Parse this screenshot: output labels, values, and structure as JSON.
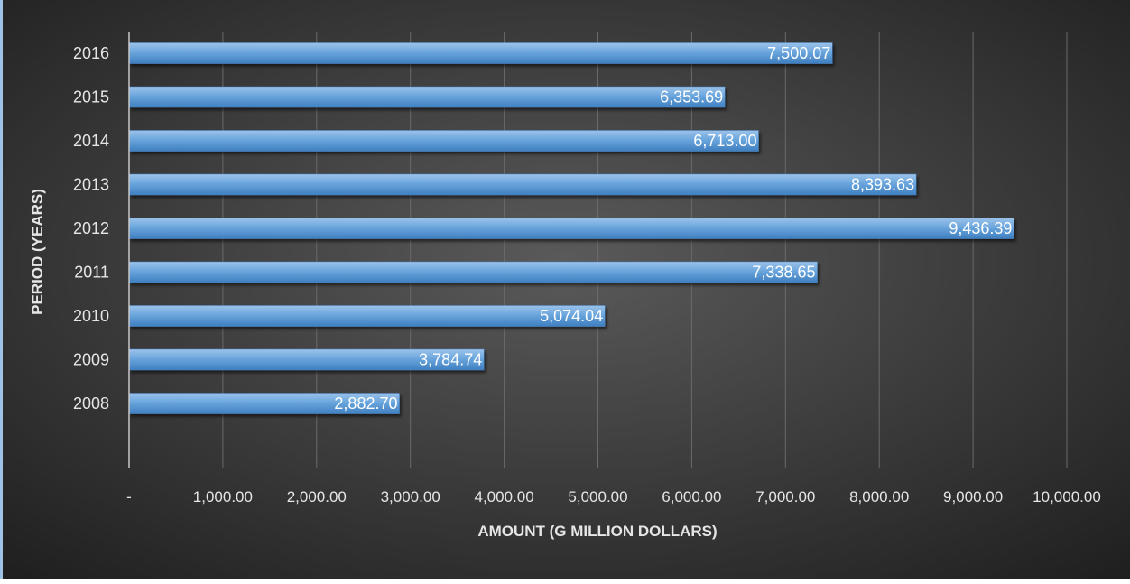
{
  "chart_data": {
    "type": "bar",
    "orientation": "horizontal",
    "title": "",
    "xlabel": "AMOUNT (G MILLION DOLLARS)",
    "ylabel": "PERIOD (YEARS)",
    "categories": [
      "2008",
      "2009",
      "2010",
      "2011",
      "2012",
      "2013",
      "2014",
      "2015",
      "2016"
    ],
    "values": [
      2882.7,
      3784.74,
      5074.04,
      7338.65,
      9436.39,
      8393.63,
      6713.0,
      6353.69,
      7500.07
    ],
    "value_labels": [
      "2,882.70",
      "3,784.74",
      "5,074.04",
      "7,338.65",
      "9,436.39",
      "8,393.63",
      "6,713.00",
      "6,353.69",
      "7,500.07"
    ],
    "xlim": [
      0,
      10000
    ],
    "x_ticks": [
      0,
      1000,
      2000,
      3000,
      4000,
      5000,
      6000,
      7000,
      8000,
      9000,
      10000
    ],
    "x_tick_labels": [
      "-",
      "1,000.00",
      "2,000.00",
      "3,000.00",
      "4,000.00",
      "5,000.00",
      "6,000.00",
      "7,000.00",
      "8,000.00",
      "9,000.00",
      "10,000.00"
    ],
    "grid": "vertical",
    "legend": "none",
    "colors": {
      "bar": "#5b9bd5",
      "background_center": "#5a5a5a",
      "background_edge": "#1e1e1e",
      "text": "#e6e6e6",
      "gridline": "#6a6a6a",
      "frame_accent": "#9dc3e6"
    }
  }
}
